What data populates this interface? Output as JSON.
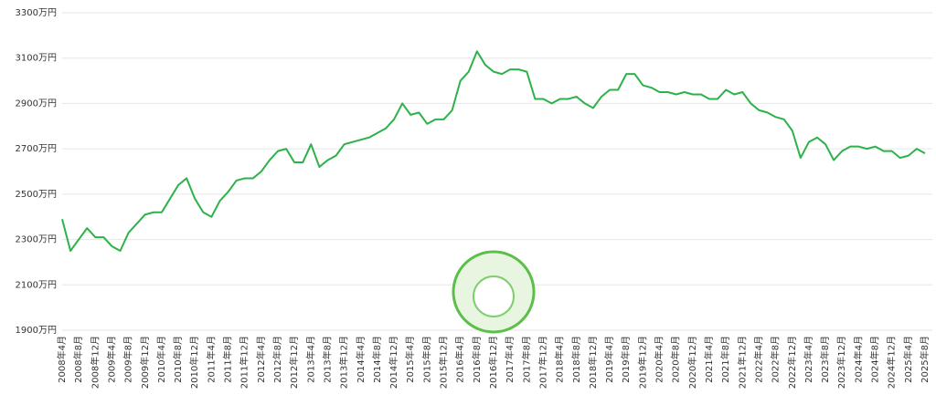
{
  "chart_data": {
    "type": "line",
    "categories": [
      "2008年4月",
      null,
      "2008年8月",
      null,
      "2008年12月",
      null,
      "2009年4月",
      null,
      "2009年8月",
      null,
      "2009年12月",
      null,
      "2010年4月",
      null,
      "2010年8月",
      null,
      "2010年12月",
      null,
      "2011年4月",
      null,
      "2011年8月",
      null,
      "2011年12月",
      null,
      "2012年4月",
      null,
      "2012年8月",
      null,
      "2012年12月",
      null,
      "2013年4月",
      null,
      "2013年8月",
      null,
      "2013年12月",
      null,
      "2014年4月",
      null,
      "2014年8月",
      null,
      "2014年12月",
      null,
      "2015年4月",
      null,
      "2015年8月",
      null,
      "2015年12月",
      null,
      "2016年4月",
      null,
      "2016年8月",
      null,
      "2016年12月",
      null,
      "2017年4月",
      null,
      "2017年8月",
      null,
      "2017年12月",
      null,
      "2018年4月",
      null,
      "2018年8月",
      null,
      "2018年12月",
      null,
      "2019年4月",
      null,
      "2019年8月",
      null,
      "2019年12月",
      null,
      "2020年4月",
      null,
      "2020年8月",
      null,
      "2020年12月",
      null,
      "2021年4月",
      null,
      "2021年8月",
      null,
      "2021年12月",
      null,
      "2022年4月",
      null,
      "2022年8月",
      null,
      "2022年12月",
      null,
      "2023年4月",
      null,
      "2023年8月",
      null,
      "2023年12月",
      null,
      "2024年4月",
      null,
      "2024年8月",
      null,
      "2024年12月",
      null,
      "2025年4月",
      null,
      "2025年8月"
    ],
    "series": [
      {
        "color": "#2db24a",
        "values": [
          2390,
          2250,
          2300,
          2350,
          2310,
          2310,
          2270,
          2250,
          2330,
          2370,
          2410,
          2420,
          2420,
          2480,
          2540,
          2570,
          2480,
          2420,
          2400,
          2470,
          2510,
          2560,
          2570,
          2570,
          2600,
          2650,
          2690,
          2700,
          2640,
          2640,
          2720,
          2620,
          2650,
          2670,
          2720,
          2730,
          2740,
          2750,
          2770,
          2790,
          2830,
          2900,
          2850,
          2860,
          2810,
          2830,
          2830,
          2870,
          3000,
          3040,
          3130,
          3070,
          3040,
          3030,
          3050,
          3050,
          3040,
          2920,
          2920,
          2900,
          2920,
          2920,
          2930,
          2900,
          2880,
          2930,
          2960,
          2960,
          3030,
          3030,
          2980,
          2970,
          2950,
          2950,
          2940,
          2950,
          2940,
          2940,
          2920,
          2920,
          2960,
          2940,
          2950,
          2900,
          2870,
          2860,
          2840,
          2830,
          2780,
          2660,
          2730,
          2750,
          2720,
          2650,
          2690,
          2710,
          2710,
          2700,
          2710,
          2690,
          2690,
          2660,
          2670,
          2700,
          2680
        ]
      }
    ],
    "ylim": [
      1900,
      3300
    ],
    "yticks": [
      {
        "value": 1900,
        "label": "1900万円"
      },
      {
        "value": 2100,
        "label": "2100万円"
      },
      {
        "value": 2300,
        "label": "2300万円"
      },
      {
        "value": 2500,
        "label": "2500万円"
      },
      {
        "value": 2700,
        "label": "2700万円"
      },
      {
        "value": 2900,
        "label": "2900万円"
      },
      {
        "value": 3100,
        "label": "3100万円"
      },
      {
        "value": 3300,
        "label": "3300万円"
      }
    ],
    "grid": true
  }
}
